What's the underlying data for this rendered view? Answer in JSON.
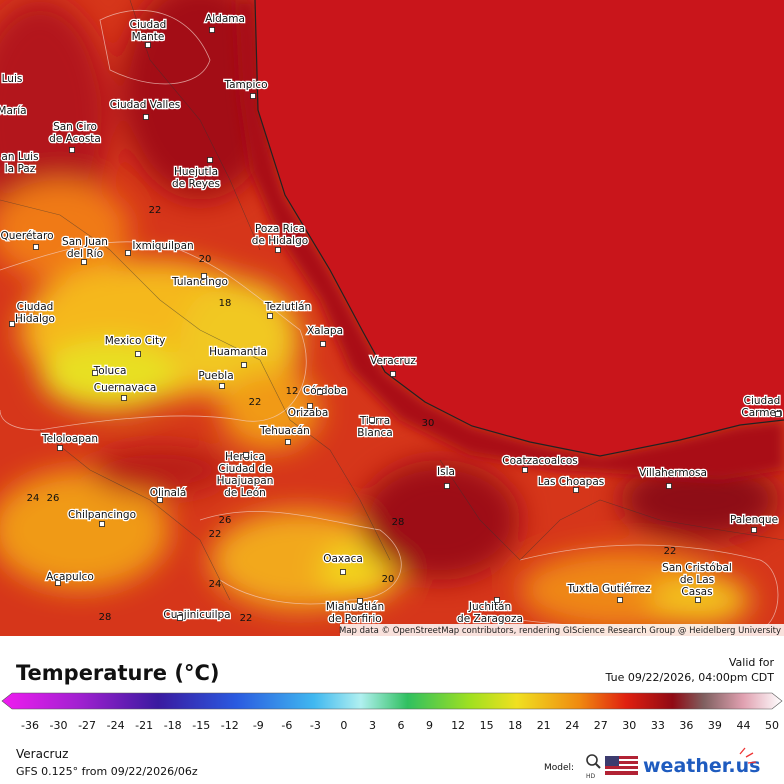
{
  "map": {
    "cities": [
      {
        "lines": [
          "Ciudad",
          "Mante"
        ]
      },
      {
        "lines": [
          "Aldama"
        ]
      },
      {
        "lines": [
          "Tampico"
        ]
      },
      {
        "lines": [
          "Luis"
        ]
      },
      {
        "lines": [
          "María"
        ]
      },
      {
        "lines": [
          "Ciudad Valles"
        ]
      },
      {
        "lines": [
          "San Ciro",
          "de Acosta"
        ]
      },
      {
        "lines": [
          "an Luis",
          "la Paz"
        ]
      },
      {
        "lines": [
          "Huejutla",
          "de Reyes"
        ]
      },
      {
        "lines": [
          "Querétaro"
        ]
      },
      {
        "lines": [
          "San Juan",
          "del Río"
        ]
      },
      {
        "lines": [
          "Ixmiquilpan"
        ]
      },
      {
        "lines": [
          "Poza Rica",
          "de Hidalgo"
        ]
      },
      {
        "lines": [
          "Tulancingo"
        ]
      },
      {
        "lines": [
          "Teziutlán"
        ]
      },
      {
        "lines": [
          "Ciudad",
          "Hidalgo"
        ]
      },
      {
        "lines": [
          "Xalapa"
        ]
      },
      {
        "lines": [
          "Mexico City"
        ]
      },
      {
        "lines": [
          "Huamantla"
        ]
      },
      {
        "lines": [
          "Toluca"
        ]
      },
      {
        "lines": [
          "Cuernavaca"
        ]
      },
      {
        "lines": [
          "Puebla"
        ]
      },
      {
        "lines": [
          "Córdoba"
        ]
      },
      {
        "lines": [
          "Orizaba"
        ]
      },
      {
        "lines": [
          "Veracruz"
        ]
      },
      {
        "lines": [
          "Tehuacán"
        ]
      },
      {
        "lines": [
          "Tierra",
          "Blanca"
        ]
      },
      {
        "lines": [
          "Teloloapan"
        ]
      },
      {
        "lines": [
          "Heroica",
          "Ciudad de",
          "Huajuapan",
          "de León"
        ]
      },
      {
        "lines": [
          "Isla"
        ]
      },
      {
        "lines": [
          "Coatzacoalcos"
        ]
      },
      {
        "lines": [
          "Villahermosa"
        ]
      },
      {
        "lines": [
          "Las Choapas"
        ]
      },
      {
        "lines": [
          "Olinalá"
        ]
      },
      {
        "lines": [
          "Chilpancingo"
        ]
      },
      {
        "lines": [
          "Palenque"
        ]
      },
      {
        "lines": [
          "San Cristóbal",
          "de Las",
          "Casas"
        ]
      },
      {
        "lines": [
          "Oaxaca"
        ]
      },
      {
        "lines": [
          "Acapulco"
        ]
      },
      {
        "lines": [
          "Tuxtla Gutiérrez"
        ]
      },
      {
        "lines": [
          "Juchitán",
          "de Zaragoza"
        ]
      },
      {
        "lines": [
          "Miahuatlán",
          "de Porfirio"
        ]
      },
      {
        "lines": [
          "Cuajinicuilpa"
        ]
      },
      {
        "lines": [
          "Ciudad",
          "Carmen"
        ]
      }
    ],
    "contour_labels": [
      "22",
      "20",
      "18",
      "12",
      "22",
      "30",
      "24",
      "26",
      "26",
      "22",
      "28",
      "20",
      "24",
      "22",
      "28",
      "22"
    ],
    "attribution": "Map data © OpenStreetMap contributors, rendering GIScience Research Group @ Heidelberg University"
  },
  "legend": {
    "title": "Temperature (°C)",
    "ticks": [
      -36,
      -30,
      -27,
      -24,
      -21,
      -18,
      -15,
      -12,
      -9,
      -6,
      -3,
      0,
      3,
      6,
      9,
      12,
      15,
      18,
      21,
      24,
      27,
      30,
      33,
      36,
      39,
      44,
      50
    ]
  },
  "header": {
    "valid_label": "Valid for",
    "valid_time": "Tue 09/22/2026, 04:00pm CDT"
  },
  "footer": {
    "location": "Veracruz",
    "model_run": "GFS 0.125° from  09/22/2026/06z",
    "model_label": "Model:",
    "hd": "HD",
    "brand": "weather.us"
  }
}
